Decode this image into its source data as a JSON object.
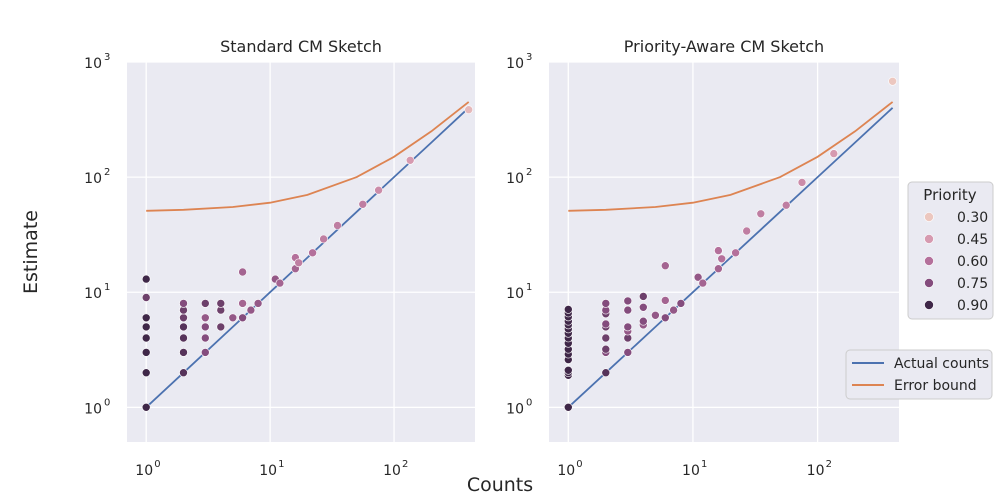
{
  "figure": {
    "xlabel": "Counts",
    "ylabel": "Estimate"
  },
  "legend_priority": {
    "title": "Priority",
    "entries": [
      {
        "label": "0.30",
        "color": "#ecc7bf"
      },
      {
        "label": "0.45",
        "color": "#d69ab0"
      },
      {
        "label": "0.60",
        "color": "#b4709b"
      },
      {
        "label": "0.75",
        "color": "#844c7d"
      },
      {
        "label": "0.90",
        "color": "#3f2748"
      }
    ]
  },
  "legend_lines": {
    "entries": [
      {
        "label": "Actual counts",
        "color": "#4c72b0"
      },
      {
        "label": "Error bound",
        "color": "#dd8452"
      }
    ]
  },
  "chart_data": [
    {
      "type": "scatter",
      "title": "Standard CM Sketch",
      "xscale": "log",
      "yscale": "log",
      "xlim": [
        0.7,
        450
      ],
      "ylim": [
        0.5,
        1000
      ],
      "xticks": [
        1,
        10,
        100
      ],
      "yticks": [
        1,
        10,
        100,
        1000
      ],
      "grid": true,
      "lines": [
        {
          "name": "Actual counts",
          "x": [
            1,
            2,
            5,
            10,
            20,
            50,
            100,
            200,
            400
          ],
          "y": [
            1,
            2,
            5,
            10,
            20,
            50,
            100,
            200,
            400
          ]
        },
        {
          "name": "Error bound",
          "x": [
            1,
            2,
            5,
            10,
            20,
            50,
            100,
            200,
            400
          ],
          "y": [
            51,
            52,
            55,
            60,
            70,
            100,
            150,
            250,
            450
          ]
        }
      ],
      "points": [
        {
          "x": 1,
          "y": 1,
          "p": 0.9
        },
        {
          "x": 1,
          "y": 2,
          "p": 0.9
        },
        {
          "x": 1,
          "y": 3,
          "p": 0.9
        },
        {
          "x": 1,
          "y": 4,
          "p": 0.9
        },
        {
          "x": 1,
          "y": 5,
          "p": 0.9
        },
        {
          "x": 1,
          "y": 6,
          "p": 0.9
        },
        {
          "x": 1,
          "y": 9,
          "p": 0.8
        },
        {
          "x": 1,
          "y": 13,
          "p": 0.9
        },
        {
          "x": 2,
          "y": 2,
          "p": 0.85
        },
        {
          "x": 2,
          "y": 3,
          "p": 0.85
        },
        {
          "x": 2,
          "y": 4,
          "p": 0.85
        },
        {
          "x": 2,
          "y": 5,
          "p": 0.85
        },
        {
          "x": 2,
          "y": 6,
          "p": 0.8
        },
        {
          "x": 2,
          "y": 7,
          "p": 0.8
        },
        {
          "x": 2,
          "y": 8,
          "p": 0.75
        },
        {
          "x": 3,
          "y": 3,
          "p": 0.75
        },
        {
          "x": 3,
          "y": 4,
          "p": 0.75
        },
        {
          "x": 3,
          "y": 5,
          "p": 0.75
        },
        {
          "x": 3,
          "y": 6,
          "p": 0.7
        },
        {
          "x": 3,
          "y": 8,
          "p": 0.8
        },
        {
          "x": 4,
          "y": 5,
          "p": 0.8
        },
        {
          "x": 4,
          "y": 7,
          "p": 0.8
        },
        {
          "x": 4,
          "y": 8,
          "p": 0.8
        },
        {
          "x": 5,
          "y": 6,
          "p": 0.7
        },
        {
          "x": 6,
          "y": 6,
          "p": 0.75
        },
        {
          "x": 6,
          "y": 8,
          "p": 0.65
        },
        {
          "x": 6,
          "y": 15,
          "p": 0.65
        },
        {
          "x": 7,
          "y": 7,
          "p": 0.7
        },
        {
          "x": 8,
          "y": 8,
          "p": 0.7
        },
        {
          "x": 11,
          "y": 13,
          "p": 0.7
        },
        {
          "x": 12,
          "y": 12,
          "p": 0.65
        },
        {
          "x": 16,
          "y": 16,
          "p": 0.65
        },
        {
          "x": 16,
          "y": 20,
          "p": 0.6
        },
        {
          "x": 17,
          "y": 18,
          "p": 0.55
        },
        {
          "x": 22,
          "y": 22,
          "p": 0.6
        },
        {
          "x": 27,
          "y": 29,
          "p": 0.55
        },
        {
          "x": 35,
          "y": 38,
          "p": 0.55
        },
        {
          "x": 56,
          "y": 58,
          "p": 0.55
        },
        {
          "x": 75,
          "y": 77,
          "p": 0.5
        },
        {
          "x": 135,
          "y": 140,
          "p": 0.45
        },
        {
          "x": 400,
          "y": 385,
          "p": 0.35
        }
      ]
    },
    {
      "type": "scatter",
      "title": "Priority-Aware CM Sketch",
      "xscale": "log",
      "yscale": "log",
      "xlim": [
        0.7,
        450
      ],
      "ylim": [
        0.5,
        1000
      ],
      "xticks": [
        1,
        10,
        100
      ],
      "yticks": [
        1,
        10,
        100,
        1000
      ],
      "grid": true,
      "lines": [
        {
          "name": "Actual counts",
          "x": [
            1,
            2,
            5,
            10,
            20,
            50,
            100,
            200,
            400
          ],
          "y": [
            1,
            2,
            5,
            10,
            20,
            50,
            100,
            200,
            400
          ]
        },
        {
          "name": "Error bound",
          "x": [
            1,
            2,
            5,
            10,
            20,
            50,
            100,
            200,
            400
          ],
          "y": [
            51,
            52,
            55,
            60,
            70,
            100,
            150,
            250,
            450
          ]
        }
      ],
      "points": [
        {
          "x": 1,
          "y": 1,
          "p": 0.9
        },
        {
          "x": 1,
          "y": 1.9,
          "p": 0.9
        },
        {
          "x": 1,
          "y": 2,
          "p": 0.9
        },
        {
          "x": 1,
          "y": 2.1,
          "p": 0.9
        },
        {
          "x": 1,
          "y": 2.6,
          "p": 0.9
        },
        {
          "x": 1,
          "y": 2.9,
          "p": 0.9
        },
        {
          "x": 1,
          "y": 3.2,
          "p": 0.9
        },
        {
          "x": 1,
          "y": 3.6,
          "p": 0.9
        },
        {
          "x": 1,
          "y": 4,
          "p": 0.9
        },
        {
          "x": 1,
          "y": 4.4,
          "p": 0.9
        },
        {
          "x": 1,
          "y": 4.8,
          "p": 0.9
        },
        {
          "x": 1,
          "y": 5.2,
          "p": 0.9
        },
        {
          "x": 1,
          "y": 5.6,
          "p": 0.9
        },
        {
          "x": 1,
          "y": 6.1,
          "p": 0.9
        },
        {
          "x": 1,
          "y": 6.6,
          "p": 0.9
        },
        {
          "x": 1,
          "y": 7.1,
          "p": 0.9
        },
        {
          "x": 2,
          "y": 2,
          "p": 0.85
        },
        {
          "x": 2,
          "y": 3,
          "p": 0.75
        },
        {
          "x": 2,
          "y": 3.2,
          "p": 0.8
        },
        {
          "x": 2,
          "y": 4,
          "p": 0.8
        },
        {
          "x": 2,
          "y": 5,
          "p": 0.8
        },
        {
          "x": 2,
          "y": 5.3,
          "p": 0.75
        },
        {
          "x": 2,
          "y": 6.5,
          "p": 0.8
        },
        {
          "x": 2,
          "y": 7,
          "p": 0.75
        },
        {
          "x": 2,
          "y": 8,
          "p": 0.75
        },
        {
          "x": 3,
          "y": 3,
          "p": 0.75
        },
        {
          "x": 3,
          "y": 4,
          "p": 0.8
        },
        {
          "x": 3,
          "y": 4.6,
          "p": 0.7
        },
        {
          "x": 3,
          "y": 5,
          "p": 0.75
        },
        {
          "x": 3,
          "y": 7,
          "p": 0.75
        },
        {
          "x": 3,
          "y": 8.4,
          "p": 0.75
        },
        {
          "x": 4,
          "y": 5.2,
          "p": 0.7
        },
        {
          "x": 4,
          "y": 5.6,
          "p": 0.75
        },
        {
          "x": 4,
          "y": 7.4,
          "p": 0.75
        },
        {
          "x": 4,
          "y": 9.2,
          "p": 0.8
        },
        {
          "x": 5,
          "y": 6.3,
          "p": 0.7
        },
        {
          "x": 6,
          "y": 6,
          "p": 0.75
        },
        {
          "x": 6,
          "y": 8.5,
          "p": 0.65
        },
        {
          "x": 6,
          "y": 17,
          "p": 0.65
        },
        {
          "x": 7,
          "y": 7,
          "p": 0.7
        },
        {
          "x": 8,
          "y": 8,
          "p": 0.75
        },
        {
          "x": 11,
          "y": 13.5,
          "p": 0.7
        },
        {
          "x": 12,
          "y": 12,
          "p": 0.65
        },
        {
          "x": 16,
          "y": 16,
          "p": 0.65
        },
        {
          "x": 16,
          "y": 23,
          "p": 0.6
        },
        {
          "x": 17,
          "y": 19.5,
          "p": 0.6
        },
        {
          "x": 22,
          "y": 22,
          "p": 0.6
        },
        {
          "x": 27,
          "y": 34,
          "p": 0.55
        },
        {
          "x": 35,
          "y": 48,
          "p": 0.55
        },
        {
          "x": 56,
          "y": 57,
          "p": 0.55
        },
        {
          "x": 75,
          "y": 90,
          "p": 0.5
        },
        {
          "x": 135,
          "y": 160,
          "p": 0.45
        },
        {
          "x": 400,
          "y": 680,
          "p": 0.3
        }
      ]
    }
  ]
}
